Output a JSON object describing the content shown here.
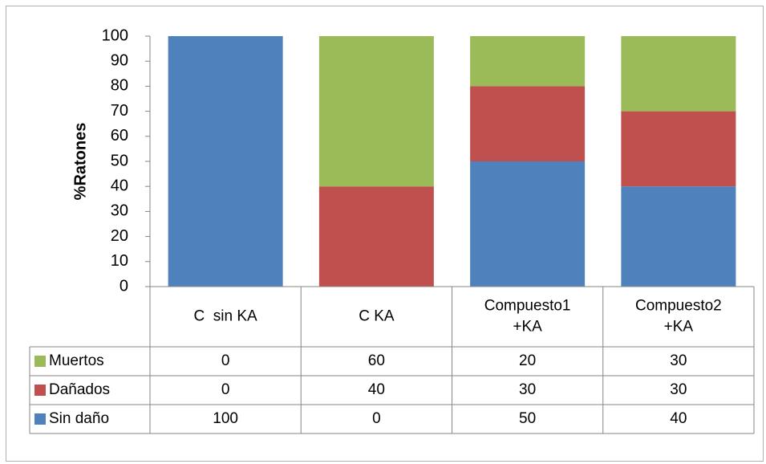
{
  "chart_data": {
    "type": "bar",
    "stacked": true,
    "categories": [
      "C  sin KA",
      "C KA",
      "Compuesto1\n+KA",
      "Compuesto2\n+KA"
    ],
    "series": [
      {
        "name": "Sin daño",
        "color": "#4f81bd",
        "values": [
          100,
          0,
          50,
          40
        ]
      },
      {
        "name": "Dañados",
        "color": "#c0504d",
        "values": [
          0,
          40,
          30,
          30
        ]
      },
      {
        "name": "Muertos",
        "color": "#9bbb59",
        "values": [
          0,
          60,
          20,
          30
        ]
      }
    ],
    "ylabel": "%Ratones",
    "ylim": [
      0,
      100
    ],
    "yticks": [
      0,
      10,
      20,
      30,
      40,
      50,
      60,
      70,
      80,
      90,
      100
    ],
    "grid": false,
    "legend": "data-table",
    "data_table_row_order": [
      "Muertos",
      "Dañados",
      "Sin daño"
    ]
  }
}
